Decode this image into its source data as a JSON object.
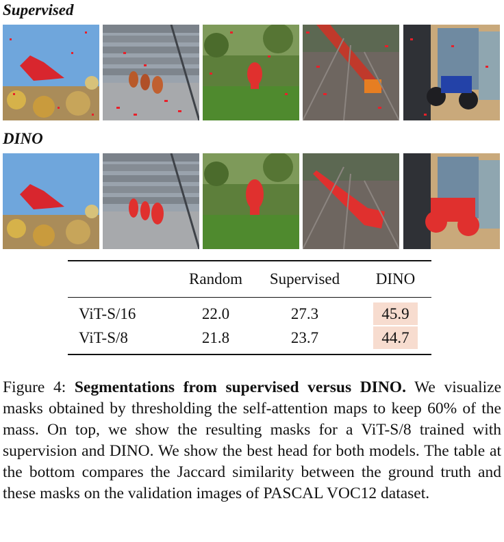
{
  "rows": {
    "supervised_label": "Supervised",
    "dino_label": "DINO"
  },
  "images": [
    "bird",
    "ducks",
    "elephant",
    "train",
    "motorcycle"
  ],
  "table": {
    "headers": [
      "",
      "Random",
      "Supervised",
      "DINO"
    ],
    "rows": [
      {
        "model": "ViT-S/16",
        "random": "22.0",
        "supervised": "27.3",
        "dino": "45.9"
      },
      {
        "model": "ViT-S/8",
        "random": "21.8",
        "supervised": "23.7",
        "dino": "44.7"
      }
    ],
    "highlight_color": "#f7dccf"
  },
  "caption": {
    "prefix": "Figure 4: ",
    "bold": "Segmentations from supervised versus DINO.",
    "body": " We visualize masks obtained by thresholding the self-attention maps to keep 60% of the mass. On top, we show the resulting masks for a ViT-S/8 trained with supervision and DINO. We show the best head for both models. The table at the bottom compares the Jaccard similarity between the ground truth and these masks on the validation images of PASCAL VOC12 dataset."
  },
  "mask_color": "#e8202a"
}
